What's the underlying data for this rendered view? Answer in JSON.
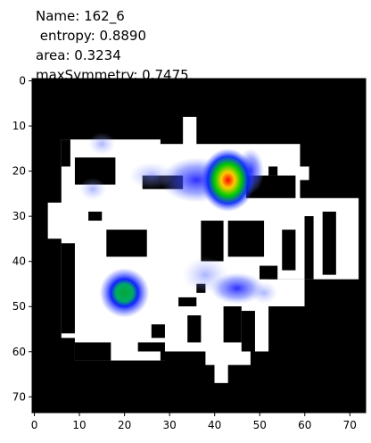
{
  "chart_data": {
    "type": "image",
    "title": [
      "Name: 162_6",
      " entropy: 0.8890",
      "area: 0.3234",
      "maxSymmetry: 0.7475"
    ],
    "xlim": [
      -0.5,
      73.5
    ],
    "ylim": [
      73.5,
      -0.5
    ],
    "xticks": [
      0,
      10,
      20,
      30,
      40,
      50,
      60,
      70
    ],
    "yticks": [
      0,
      10,
      20,
      30,
      40,
      50,
      60,
      70
    ]
  }
}
